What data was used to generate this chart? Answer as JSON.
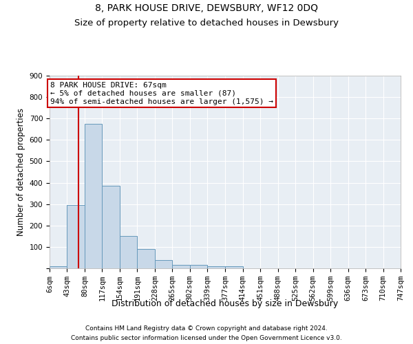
{
  "title": "8, PARK HOUSE DRIVE, DEWSBURY, WF12 0DQ",
  "subtitle": "Size of property relative to detached houses in Dewsbury",
  "xlabel": "Distribution of detached houses by size in Dewsbury",
  "ylabel": "Number of detached properties",
  "footnote1": "Contains HM Land Registry data © Crown copyright and database right 2024.",
  "footnote2": "Contains public sector information licensed under the Open Government Licence v3.0.",
  "bin_edges": [
    6,
    43,
    80,
    117,
    154,
    191,
    228,
    265,
    302,
    339,
    377,
    414,
    451,
    488,
    525,
    562,
    599,
    636,
    673,
    710,
    747
  ],
  "bar_heights": [
    10,
    295,
    675,
    385,
    152,
    90,
    37,
    15,
    15,
    10,
    10,
    0,
    0,
    0,
    0,
    0,
    0,
    0,
    0,
    0
  ],
  "bar_color": "#c8d8e8",
  "bar_edge_color": "#6699bb",
  "property_size": 67,
  "red_line_color": "#cc0000",
  "annotation_line1": "8 PARK HOUSE DRIVE: 67sqm",
  "annotation_line2": "← 5% of detached houses are smaller (87)",
  "annotation_line3": "94% of semi-detached houses are larger (1,575) →",
  "annotation_box_color": "#cc0000",
  "ylim": [
    0,
    900
  ],
  "yticks": [
    0,
    100,
    200,
    300,
    400,
    500,
    600,
    700,
    800,
    900
  ],
  "bg_color": "#e8eef4",
  "grid_color": "#ffffff",
  "title_fontsize": 10,
  "subtitle_fontsize": 9.5,
  "ylabel_fontsize": 8.5,
  "xlabel_fontsize": 9,
  "tick_fontsize": 7.5,
  "annotation_fontsize": 8,
  "footnote_fontsize": 6.5
}
